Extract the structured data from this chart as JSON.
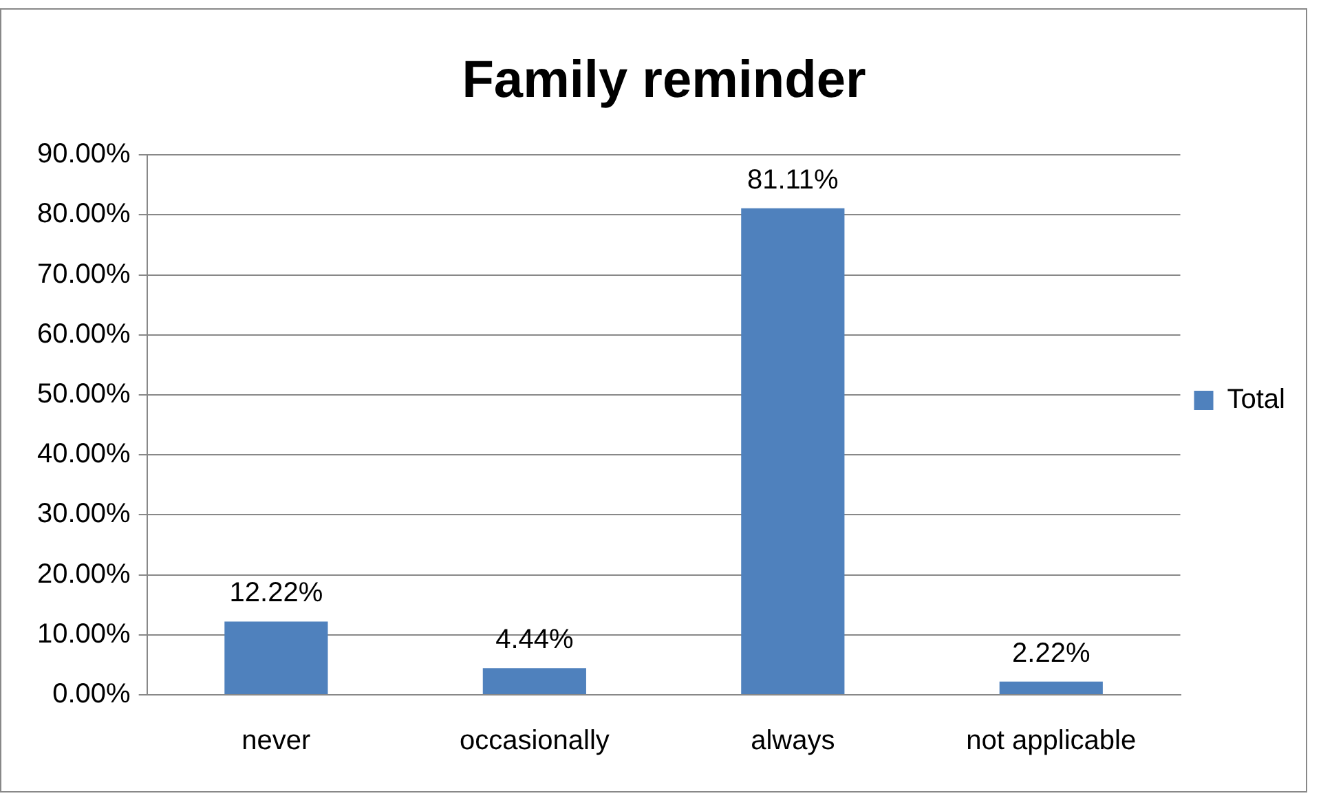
{
  "chart_data": {
    "type": "bar",
    "title": "Family reminder",
    "categories": [
      "never",
      "occasionally",
      "always",
      "not applicable"
    ],
    "series": [
      {
        "name": "Total",
        "color": "#4f81bd",
        "values": [
          12.22,
          4.44,
          81.11,
          2.22
        ],
        "value_labels": [
          "12.22%",
          "4.44%",
          "81.11%",
          "2.22%"
        ]
      }
    ],
    "ylim": [
      0,
      90
    ],
    "yticks": [
      {
        "value": 0,
        "label": "0.00%"
      },
      {
        "value": 10,
        "label": "10.00%"
      },
      {
        "value": 20,
        "label": "20.00%"
      },
      {
        "value": 30,
        "label": "30.00%"
      },
      {
        "value": 40,
        "label": "40.00%"
      },
      {
        "value": 50,
        "label": "50.00%"
      },
      {
        "value": 60,
        "label": "60.00%"
      },
      {
        "value": 70,
        "label": "70.00%"
      },
      {
        "value": 80,
        "label": "80.00%"
      },
      {
        "value": 90,
        "label": "90.00%"
      }
    ],
    "grid": "y",
    "legend": "right"
  }
}
